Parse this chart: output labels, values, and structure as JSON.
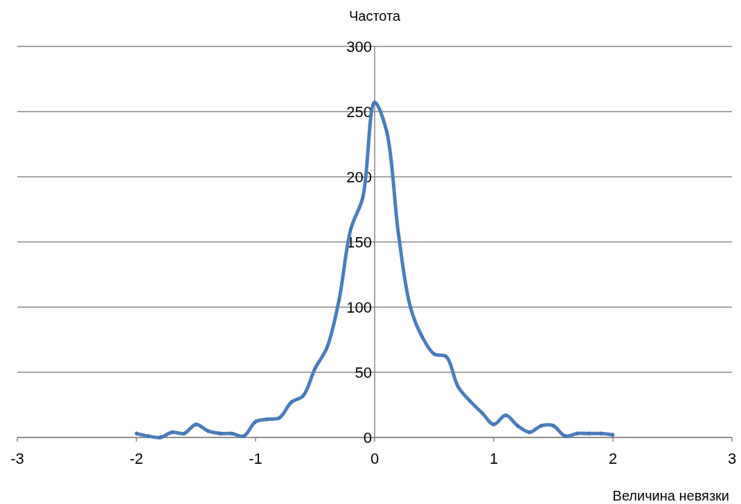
{
  "chart_data": {
    "type": "line",
    "xlabel": "Величина невязки",
    "ylabel": "Частота",
    "x": [
      -2,
      -1.9,
      -1.8,
      -1.7,
      -1.6,
      -1.5,
      -1.4,
      -1.3,
      -1.2,
      -1.1,
      -1,
      -0.9,
      -0.8,
      -0.7,
      -0.6,
      -0.5,
      -0.4,
      -0.3,
      -0.2,
      -0.1,
      0,
      0.1,
      0.2,
      0.3,
      0.4,
      0.5,
      0.6,
      0.7,
      0.8,
      0.9,
      1,
      1.1,
      1.2,
      1.3,
      1.4,
      1.5,
      1.6,
      1.7,
      1.8,
      1.9,
      2
    ],
    "series": [
      {
        "color": "#4a7ebb",
        "values": [
          3,
          1,
          0,
          4,
          3,
          10,
          5,
          3,
          3,
          1,
          12,
          14,
          15,
          27,
          32,
          53,
          69,
          105,
          160,
          184,
          257,
          235,
          156,
          100,
          77,
          64,
          62,
          39,
          28,
          19,
          10,
          17,
          9,
          4,
          9,
          9,
          1,
          3,
          3,
          3,
          2
        ]
      }
    ],
    "xlim": [
      -3,
      3
    ],
    "xticks": [
      -3,
      -2,
      -1,
      0,
      1,
      2,
      3
    ],
    "ylim": [
      0,
      300
    ],
    "yticks": [
      0,
      50,
      100,
      150,
      200,
      250,
      300
    ],
    "grid": "y",
    "marker": "diamond",
    "line_style": "solid"
  }
}
